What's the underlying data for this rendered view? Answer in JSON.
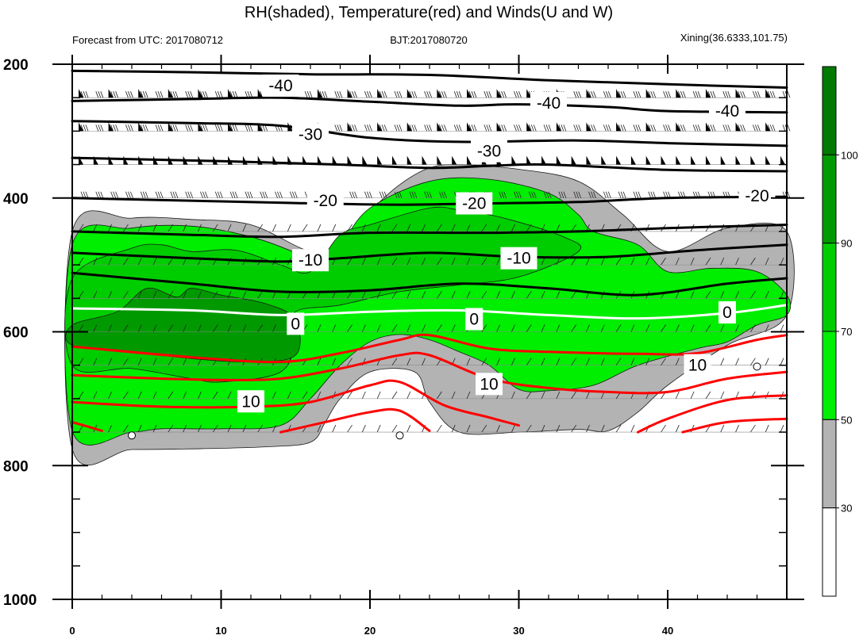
{
  "title": "RH(shaded), Temperature(red) and Winds(U and W)",
  "header": {
    "left": "Forecast from UTC: 2017080712",
    "center": "BJT:2017080720",
    "right": "Xining(36.6333,101.75)"
  },
  "chart_data": {
    "type": "contour",
    "x": {
      "range": [
        0,
        48
      ],
      "ticks": [
        0,
        10,
        20,
        30,
        40
      ],
      "tick_labels": [
        "0",
        "10",
        "20",
        "30",
        "40"
      ]
    },
    "y": {
      "range": [
        1000,
        200
      ],
      "reversed": true,
      "ticks": [
        200,
        400,
        600,
        800,
        1000
      ],
      "tick_labels": [
        "200",
        "400",
        "600",
        "800",
        "1000"
      ]
    },
    "colorbar": {
      "levels": [
        30,
        50,
        70,
        90,
        100
      ],
      "labels": [
        "30",
        "50",
        "70",
        "90",
        "100"
      ],
      "colors": [
        "#ffffff",
        "#b3b3b3",
        "#00ee00",
        "#00cd00",
        "#009a00",
        "#007a00"
      ]
    },
    "rh_regions": [
      {
        "level": 30,
        "color": "#b3b3b3",
        "points": [
          [
            0,
            450
          ],
          [
            4,
            430
          ],
          [
            8,
            432
          ],
          [
            12,
            440
          ],
          [
            16,
            480
          ],
          [
            18,
            470
          ],
          [
            20,
            420
          ],
          [
            22,
            380
          ],
          [
            24,
            355
          ],
          [
            26,
            350
          ],
          [
            30,
            357
          ],
          [
            34,
            375
          ],
          [
            37,
            425
          ],
          [
            40,
            480
          ],
          [
            44,
            445
          ],
          [
            48,
            450
          ],
          [
            48,
            575
          ],
          [
            44,
            620
          ],
          [
            40,
            680
          ],
          [
            38,
            720
          ],
          [
            36,
            748
          ],
          [
            34,
            746
          ],
          [
            30,
            750
          ],
          [
            26,
            750
          ],
          [
            24,
            705
          ],
          [
            23,
            660
          ],
          [
            20,
            660
          ],
          [
            18,
            700
          ],
          [
            17,
            735
          ],
          [
            16,
            765
          ],
          [
            13,
            772
          ],
          [
            8,
            775
          ],
          [
            4,
            776
          ],
          [
            0,
            775
          ]
        ]
      },
      {
        "level": 50,
        "color": "#00ee00",
        "points": [
          [
            0,
            470
          ],
          [
            4,
            445
          ],
          [
            8,
            442
          ],
          [
            12,
            458
          ],
          [
            15,
            482
          ],
          [
            16,
            496
          ],
          [
            18,
            468
          ],
          [
            20,
            415
          ],
          [
            24,
            375
          ],
          [
            28,
            372
          ],
          [
            32,
            393
          ],
          [
            34,
            425
          ],
          [
            35,
            450
          ],
          [
            38,
            470
          ],
          [
            40,
            510
          ],
          [
            43,
            505
          ],
          [
            46,
            510
          ],
          [
            48,
            545
          ],
          [
            48,
            575
          ],
          [
            46,
            590
          ],
          [
            44,
            615
          ],
          [
            42,
            625
          ],
          [
            38,
            650
          ],
          [
            35,
            680
          ],
          [
            32,
            688
          ],
          [
            30,
            686
          ],
          [
            28,
            650
          ],
          [
            26,
            630
          ],
          [
            24,
            612
          ],
          [
            22,
            604
          ],
          [
            20,
            615
          ],
          [
            18,
            650
          ],
          [
            16,
            700
          ],
          [
            14,
            740
          ],
          [
            10,
            745
          ],
          [
            6,
            745
          ],
          [
            4,
            750
          ],
          [
            0,
            748
          ]
        ]
      },
      {
        "level": 70,
        "color": "#00cd00",
        "points": [
          [
            0,
            520
          ],
          [
            4,
            475
          ],
          [
            6,
            470
          ],
          [
            8,
            480
          ],
          [
            11,
            478
          ],
          [
            14,
            500
          ],
          [
            16,
            510
          ],
          [
            18,
            455
          ],
          [
            20,
            440
          ],
          [
            24,
            415
          ],
          [
            26,
            418
          ],
          [
            29,
            430
          ],
          [
            33,
            458
          ],
          [
            34,
            480
          ],
          [
            30,
            518
          ],
          [
            26,
            530
          ],
          [
            22,
            540
          ],
          [
            18,
            560
          ],
          [
            15,
            570
          ],
          [
            15,
            610
          ],
          [
            14,
            660
          ],
          [
            10,
            675
          ],
          [
            8,
            670
          ],
          [
            4,
            655
          ],
          [
            0,
            650
          ]
        ]
      },
      {
        "level": 90,
        "color": "#009a00",
        "points": [
          [
            0,
            620
          ],
          [
            0,
            590
          ],
          [
            3,
            570
          ],
          [
            5,
            535
          ],
          [
            7,
            548
          ],
          [
            8,
            535
          ],
          [
            10,
            545
          ],
          [
            13,
            558
          ],
          [
            15,
            582
          ],
          [
            15,
            635
          ],
          [
            12,
            645
          ],
          [
            8,
            640
          ],
          [
            4,
            630
          ]
        ]
      }
    ],
    "temperature_contours": [
      {
        "value": -40,
        "color": "#000000",
        "points": [
          [
            0,
            210
          ],
          [
            8,
            212
          ],
          [
            16,
            215
          ],
          [
            24,
            216
          ],
          [
            32,
            224
          ],
          [
            40,
            230
          ],
          [
            48,
            235
          ]
        ]
      },
      {
        "value": -40,
        "color": "#000000",
        "points": [
          [
            0,
            255
          ],
          [
            8,
            252
          ],
          [
            14,
            250
          ],
          [
            20,
            256
          ],
          [
            26,
            262
          ],
          [
            30,
            260
          ],
          [
            36,
            264
          ],
          [
            40,
            270
          ],
          [
            48,
            272
          ]
        ]
      },
      {
        "value": -30,
        "color": "#000000",
        "points": [
          [
            0,
            285
          ],
          [
            8,
            288
          ],
          [
            14,
            292
          ],
          [
            20,
            310
          ],
          [
            26,
            316
          ],
          [
            34,
            314
          ],
          [
            40,
            318
          ],
          [
            48,
            322
          ]
        ]
      },
      {
        "value": -30,
        "color": "#000000",
        "points": [
          [
            0,
            340
          ],
          [
            10,
            345
          ],
          [
            18,
            350
          ],
          [
            24,
            355
          ],
          [
            28,
            352
          ],
          [
            32,
            350
          ],
          [
            40,
            358
          ],
          [
            48,
            360
          ]
        ]
      },
      {
        "value": -20,
        "color": "#000000",
        "points": [
          [
            0,
            400
          ],
          [
            10,
            405
          ],
          [
            16,
            408
          ],
          [
            22,
            410
          ],
          [
            28,
            408
          ],
          [
            34,
            406
          ],
          [
            40,
            400
          ],
          [
            48,
            398
          ]
        ]
      },
      {
        "value": -20,
        "color": "#000000",
        "points": [
          [
            0,
            450
          ],
          [
            8,
            455
          ],
          [
            14,
            458
          ],
          [
            20,
            452
          ],
          [
            28,
            452
          ],
          [
            34,
            450
          ],
          [
            40,
            445
          ],
          [
            48,
            440
          ]
        ]
      },
      {
        "value": -10,
        "color": "#000000",
        "points": [
          [
            0,
            482
          ],
          [
            8,
            490
          ],
          [
            14,
            495
          ],
          [
            18,
            490
          ],
          [
            24,
            482
          ],
          [
            30,
            488
          ],
          [
            36,
            488
          ],
          [
            42,
            478
          ],
          [
            48,
            470
          ]
        ]
      },
      {
        "value": -10,
        "color": "#000000",
        "points": [
          [
            0,
            512
          ],
          [
            8,
            528
          ],
          [
            14,
            540
          ],
          [
            20,
            538
          ],
          [
            26,
            528
          ],
          [
            32,
            535
          ],
          [
            38,
            545
          ],
          [
            44,
            528
          ],
          [
            48,
            520
          ]
        ]
      },
      {
        "value": 0,
        "color": "#ffffff",
        "points": [
          [
            0,
            565
          ],
          [
            8,
            568
          ],
          [
            14,
            575
          ],
          [
            20,
            570
          ],
          [
            26,
            568
          ],
          [
            32,
            575
          ],
          [
            38,
            580
          ],
          [
            44,
            572
          ],
          [
            48,
            560
          ]
        ]
      },
      {
        "value": 10,
        "color": "#ff0000",
        "points": [
          [
            0,
            622
          ],
          [
            8,
            638
          ],
          [
            14,
            645
          ],
          [
            18,
            632
          ],
          [
            22,
            612
          ],
          [
            24,
            605
          ],
          [
            28,
            625
          ],
          [
            32,
            630
          ],
          [
            38,
            633
          ],
          [
            42,
            632
          ],
          [
            46,
            612
          ],
          [
            48,
            605
          ]
        ]
      },
      {
        "value": 10,
        "color": "#ff0000",
        "points": [
          [
            0,
            665
          ],
          [
            6,
            670
          ],
          [
            10,
            672
          ],
          [
            14,
            670
          ],
          [
            18,
            655
          ],
          [
            22,
            635
          ],
          [
            24,
            635
          ],
          [
            28,
            670
          ],
          [
            32,
            684
          ],
          [
            36,
            690
          ],
          [
            40,
            690
          ],
          [
            44,
            670
          ],
          [
            48,
            660
          ]
        ]
      },
      {
        "value": 10,
        "color": "#ff0000",
        "points": [
          [
            0,
            705
          ],
          [
            6,
            712
          ],
          [
            12,
            712
          ],
          [
            16,
            705
          ],
          [
            20,
            680
          ],
          [
            22,
            675
          ],
          [
            25,
            710
          ],
          [
            28,
            728
          ],
          [
            30,
            740
          ]
        ]
      },
      {
        "value": 10,
        "color": "#ff0000",
        "points": [
          [
            38,
            750
          ],
          [
            40,
            730
          ],
          [
            44,
            702
          ],
          [
            48,
            695
          ]
        ]
      },
      {
        "value": 10,
        "color": "#ff0000",
        "points": [
          [
            0,
            735
          ],
          [
            2,
            748
          ]
        ]
      },
      {
        "value": 10,
        "color": "#ff0000",
        "points": [
          [
            14,
            750
          ],
          [
            17,
            735
          ],
          [
            20,
            720
          ],
          [
            22,
            718
          ],
          [
            24,
            748
          ]
        ]
      },
      {
        "value": 10,
        "color": "#ff0000",
        "points": [
          [
            41,
            750
          ],
          [
            44,
            735
          ],
          [
            48,
            730
          ]
        ]
      }
    ],
    "contour_labels": [
      {
        "text": "-40",
        "x": 14,
        "y": 232
      },
      {
        "text": "-40",
        "x": 32,
        "y": 258
      },
      {
        "text": "-40",
        "x": 44,
        "y": 270
      },
      {
        "text": "-30",
        "x": 16,
        "y": 305
      },
      {
        "text": "-30",
        "x": 28,
        "y": 330
      },
      {
        "text": "-20",
        "x": 17,
        "y": 404
      },
      {
        "text": "-20",
        "x": 27,
        "y": 408
      },
      {
        "text": "-20",
        "x": 46,
        "y": 397
      },
      {
        "text": "-10",
        "x": 16,
        "y": 493
      },
      {
        "text": "-10",
        "x": 30,
        "y": 490
      },
      {
        "text": "0",
        "x": 15,
        "y": 588
      },
      {
        "text": "0",
        "x": 27,
        "y": 581
      },
      {
        "text": "0",
        "x": 44,
        "y": 571
      },
      {
        "text": "10",
        "x": 12,
        "y": 704
      },
      {
        "text": "10",
        "x": 28,
        "y": 678
      },
      {
        "text": "10",
        "x": 42,
        "y": 650
      }
    ],
    "wind_levels": [
      200,
      250,
      300,
      350,
      400,
      450,
      500,
      550,
      600,
      650,
      700,
      750
    ],
    "wind_rows": [
      {
        "p": 250,
        "style": "flag_barb"
      },
      {
        "p": 300,
        "style": "flag_barb"
      },
      {
        "p": 350,
        "style": "flag"
      },
      {
        "p": 400,
        "style": "barb"
      },
      {
        "p": 450,
        "style": "tick"
      },
      {
        "p": 500,
        "style": "tick"
      },
      {
        "p": 550,
        "style": "tick"
      },
      {
        "p": 600,
        "style": "tick"
      },
      {
        "p": 650,
        "style": "tick"
      },
      {
        "p": 700,
        "style": "tick"
      },
      {
        "p": 750,
        "style": "tick"
      }
    ],
    "calm_markers": [
      [
        4,
        755
      ],
      [
        22,
        755
      ],
      [
        46,
        652
      ]
    ]
  }
}
